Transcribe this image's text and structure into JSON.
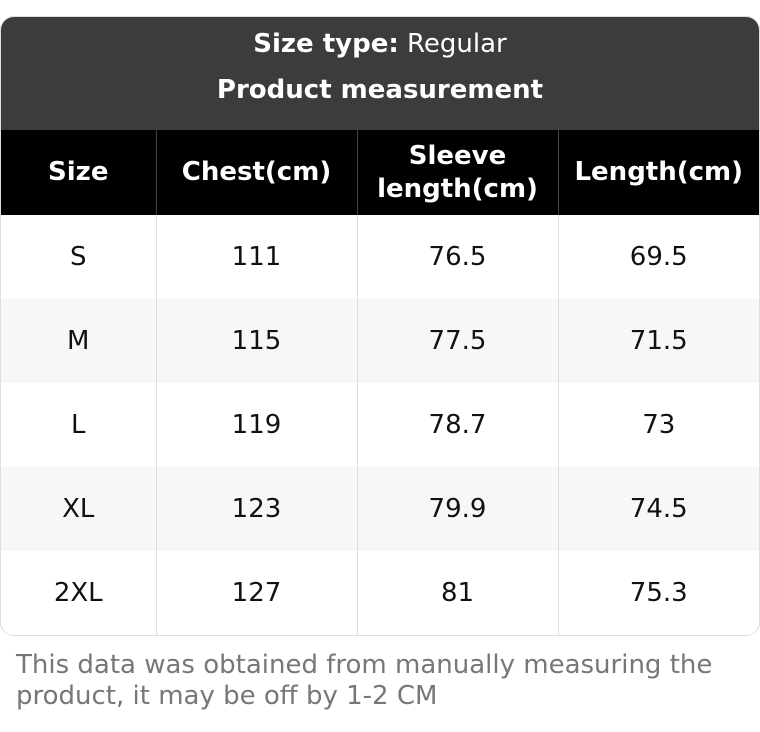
{
  "header": {
    "size_type_label": "Size type:",
    "size_type_value": "Regular",
    "title": "Product measurement"
  },
  "table": {
    "columns": [
      "Size",
      "Chest(cm)",
      "Sleeve length(cm)",
      "Length(cm)"
    ],
    "rows": [
      [
        "S",
        "111",
        "76.5",
        "69.5"
      ],
      [
        "M",
        "115",
        "77.5",
        "71.5"
      ],
      [
        "L",
        "119",
        "78.7",
        "73"
      ],
      [
        "XL",
        "123",
        "79.9",
        "74.5"
      ],
      [
        "2XL",
        "127",
        "81",
        "75.3"
      ]
    ]
  },
  "footnote": "This data was obtained from manually measuring the product, it may be off by 1-2 CM"
}
